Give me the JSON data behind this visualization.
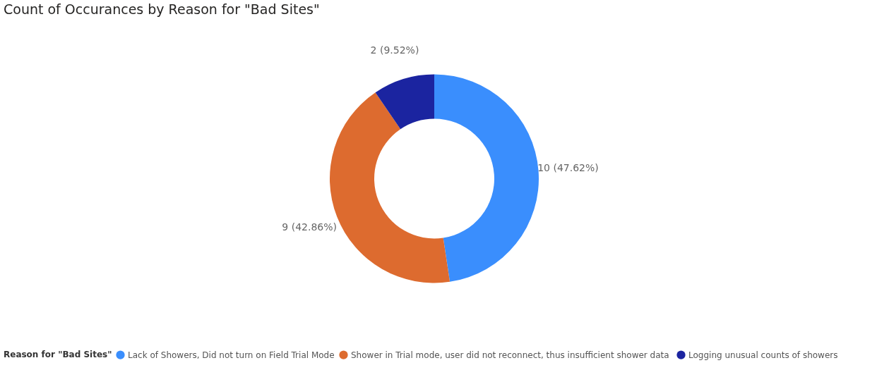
{
  "chart_data": {
    "type": "donut",
    "title": "Count of Occurances by Reason for \"Bad Sites\"",
    "legend_title": "Reason for \"Bad Sites\"",
    "categories": [
      "Lack of Showers, Did not turn on Field Trial Mode",
      "Shower  in Trial mode, user did not reconnect, thus insufficient shower data",
      "Logging unusual counts of showers"
    ],
    "values": [
      10,
      9,
      2
    ],
    "colors": [
      "#3a8efd",
      "#dd6b2f",
      "#1b24a0"
    ],
    "value_labels": [
      "10 (47.62%)",
      "9 (42.86%)",
      "2 (9.52%)"
    ],
    "legend": "bottom"
  }
}
